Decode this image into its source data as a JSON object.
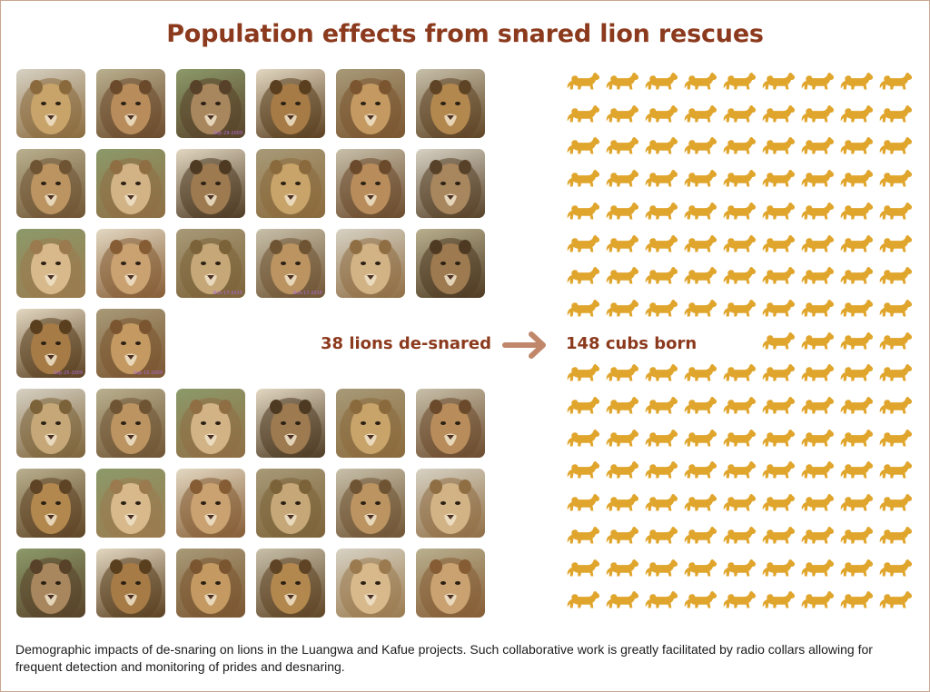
{
  "title": "Population effects from snared lion rescues",
  "lions_label": "38 lions de-snared",
  "cubs_label": "148 cubs born",
  "lions_desnared": 38,
  "cubs_born": 148,
  "caption": "Demographic impacts of de-snaring on lions in the Luangwa and Kafue projects. Such collaborative work is greatly facilitated by radio collars allowing for frequent detection and monitoring of prides and desnaring.",
  "photo_datestamps": [
    "Sep-29-2009",
    "Nov-17-2016",
    "Nov-17-2016",
    "Sep-25-2009",
    "Sep-15-2009"
  ],
  "colors": {
    "title": "#8c3a1d",
    "arrow": "#c0876a",
    "cub": "#e0a52c",
    "border": "#c9a68f"
  }
}
